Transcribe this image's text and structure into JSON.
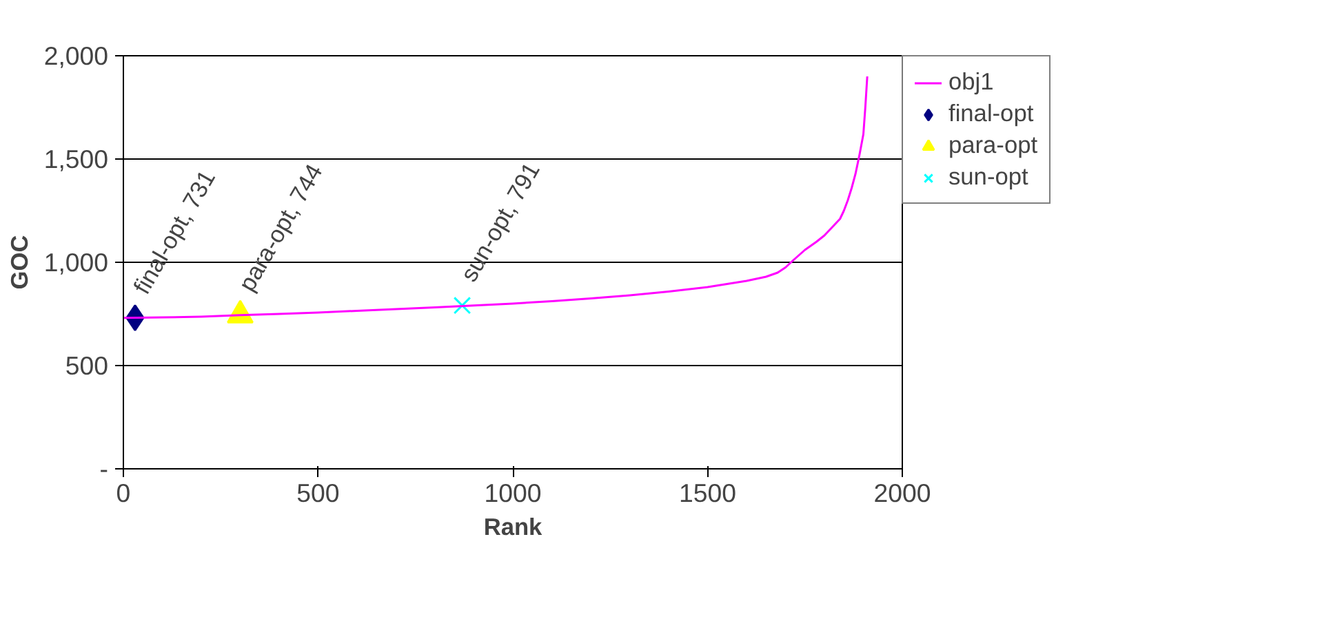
{
  "chart_data": {
    "type": "line",
    "xlabel": "Rank",
    "ylabel": "GOC",
    "xlim": [
      0,
      2000
    ],
    "ylim": [
      0,
      2000
    ],
    "xticks": [
      0,
      500,
      1000,
      1500,
      2000
    ],
    "yticks": [
      {
        "value": 0,
        "label": "-"
      },
      {
        "value": 500,
        "label": "500"
      },
      {
        "value": 1000,
        "label": "1,000"
      },
      {
        "value": 1500,
        "label": "1,500"
      },
      {
        "value": 2000,
        "label": "2,000"
      }
    ],
    "grid": "y",
    "legend": "right",
    "series": [
      {
        "name": "obj1",
        "color": "#ff00ff",
        "marker": "none",
        "x": [
          0,
          100,
          200,
          300,
          400,
          500,
          600,
          700,
          800,
          900,
          1000,
          1100,
          1200,
          1300,
          1400,
          1500,
          1600,
          1650,
          1680,
          1700,
          1720,
          1750,
          1780,
          1800,
          1820,
          1840,
          1850,
          1860,
          1870,
          1880,
          1890,
          1900,
          1905,
          1910
        ],
        "values": [
          731,
          733,
          737,
          744,
          750,
          757,
          765,
          773,
          782,
          791,
          800,
          812,
          825,
          840,
          858,
          880,
          910,
          930,
          950,
          975,
          1010,
          1060,
          1100,
          1130,
          1170,
          1210,
          1250,
          1300,
          1360,
          1430,
          1520,
          1620,
          1750,
          1900
        ]
      },
      {
        "name": "final-opt",
        "type": "scatter",
        "color": "#000080",
        "marker": "diamond",
        "x": [
          30
        ],
        "values": [
          731
        ]
      },
      {
        "name": "para-opt",
        "type": "scatter",
        "color": "#ffff00",
        "marker": "triangle",
        "x": [
          300
        ],
        "values": [
          744
        ]
      },
      {
        "name": "sun-opt",
        "type": "scatter",
        "color": "#00ffff",
        "marker": "cross",
        "x": [
          870
        ],
        "values": [
          791
        ]
      }
    ],
    "annotations": [
      {
        "text": "final-opt, 731",
        "x": 30,
        "y": 731
      },
      {
        "text": "para-opt, 744",
        "x": 300,
        "y": 744
      },
      {
        "text": "sun-opt, 791",
        "x": 870,
        "y": 791
      }
    ]
  }
}
